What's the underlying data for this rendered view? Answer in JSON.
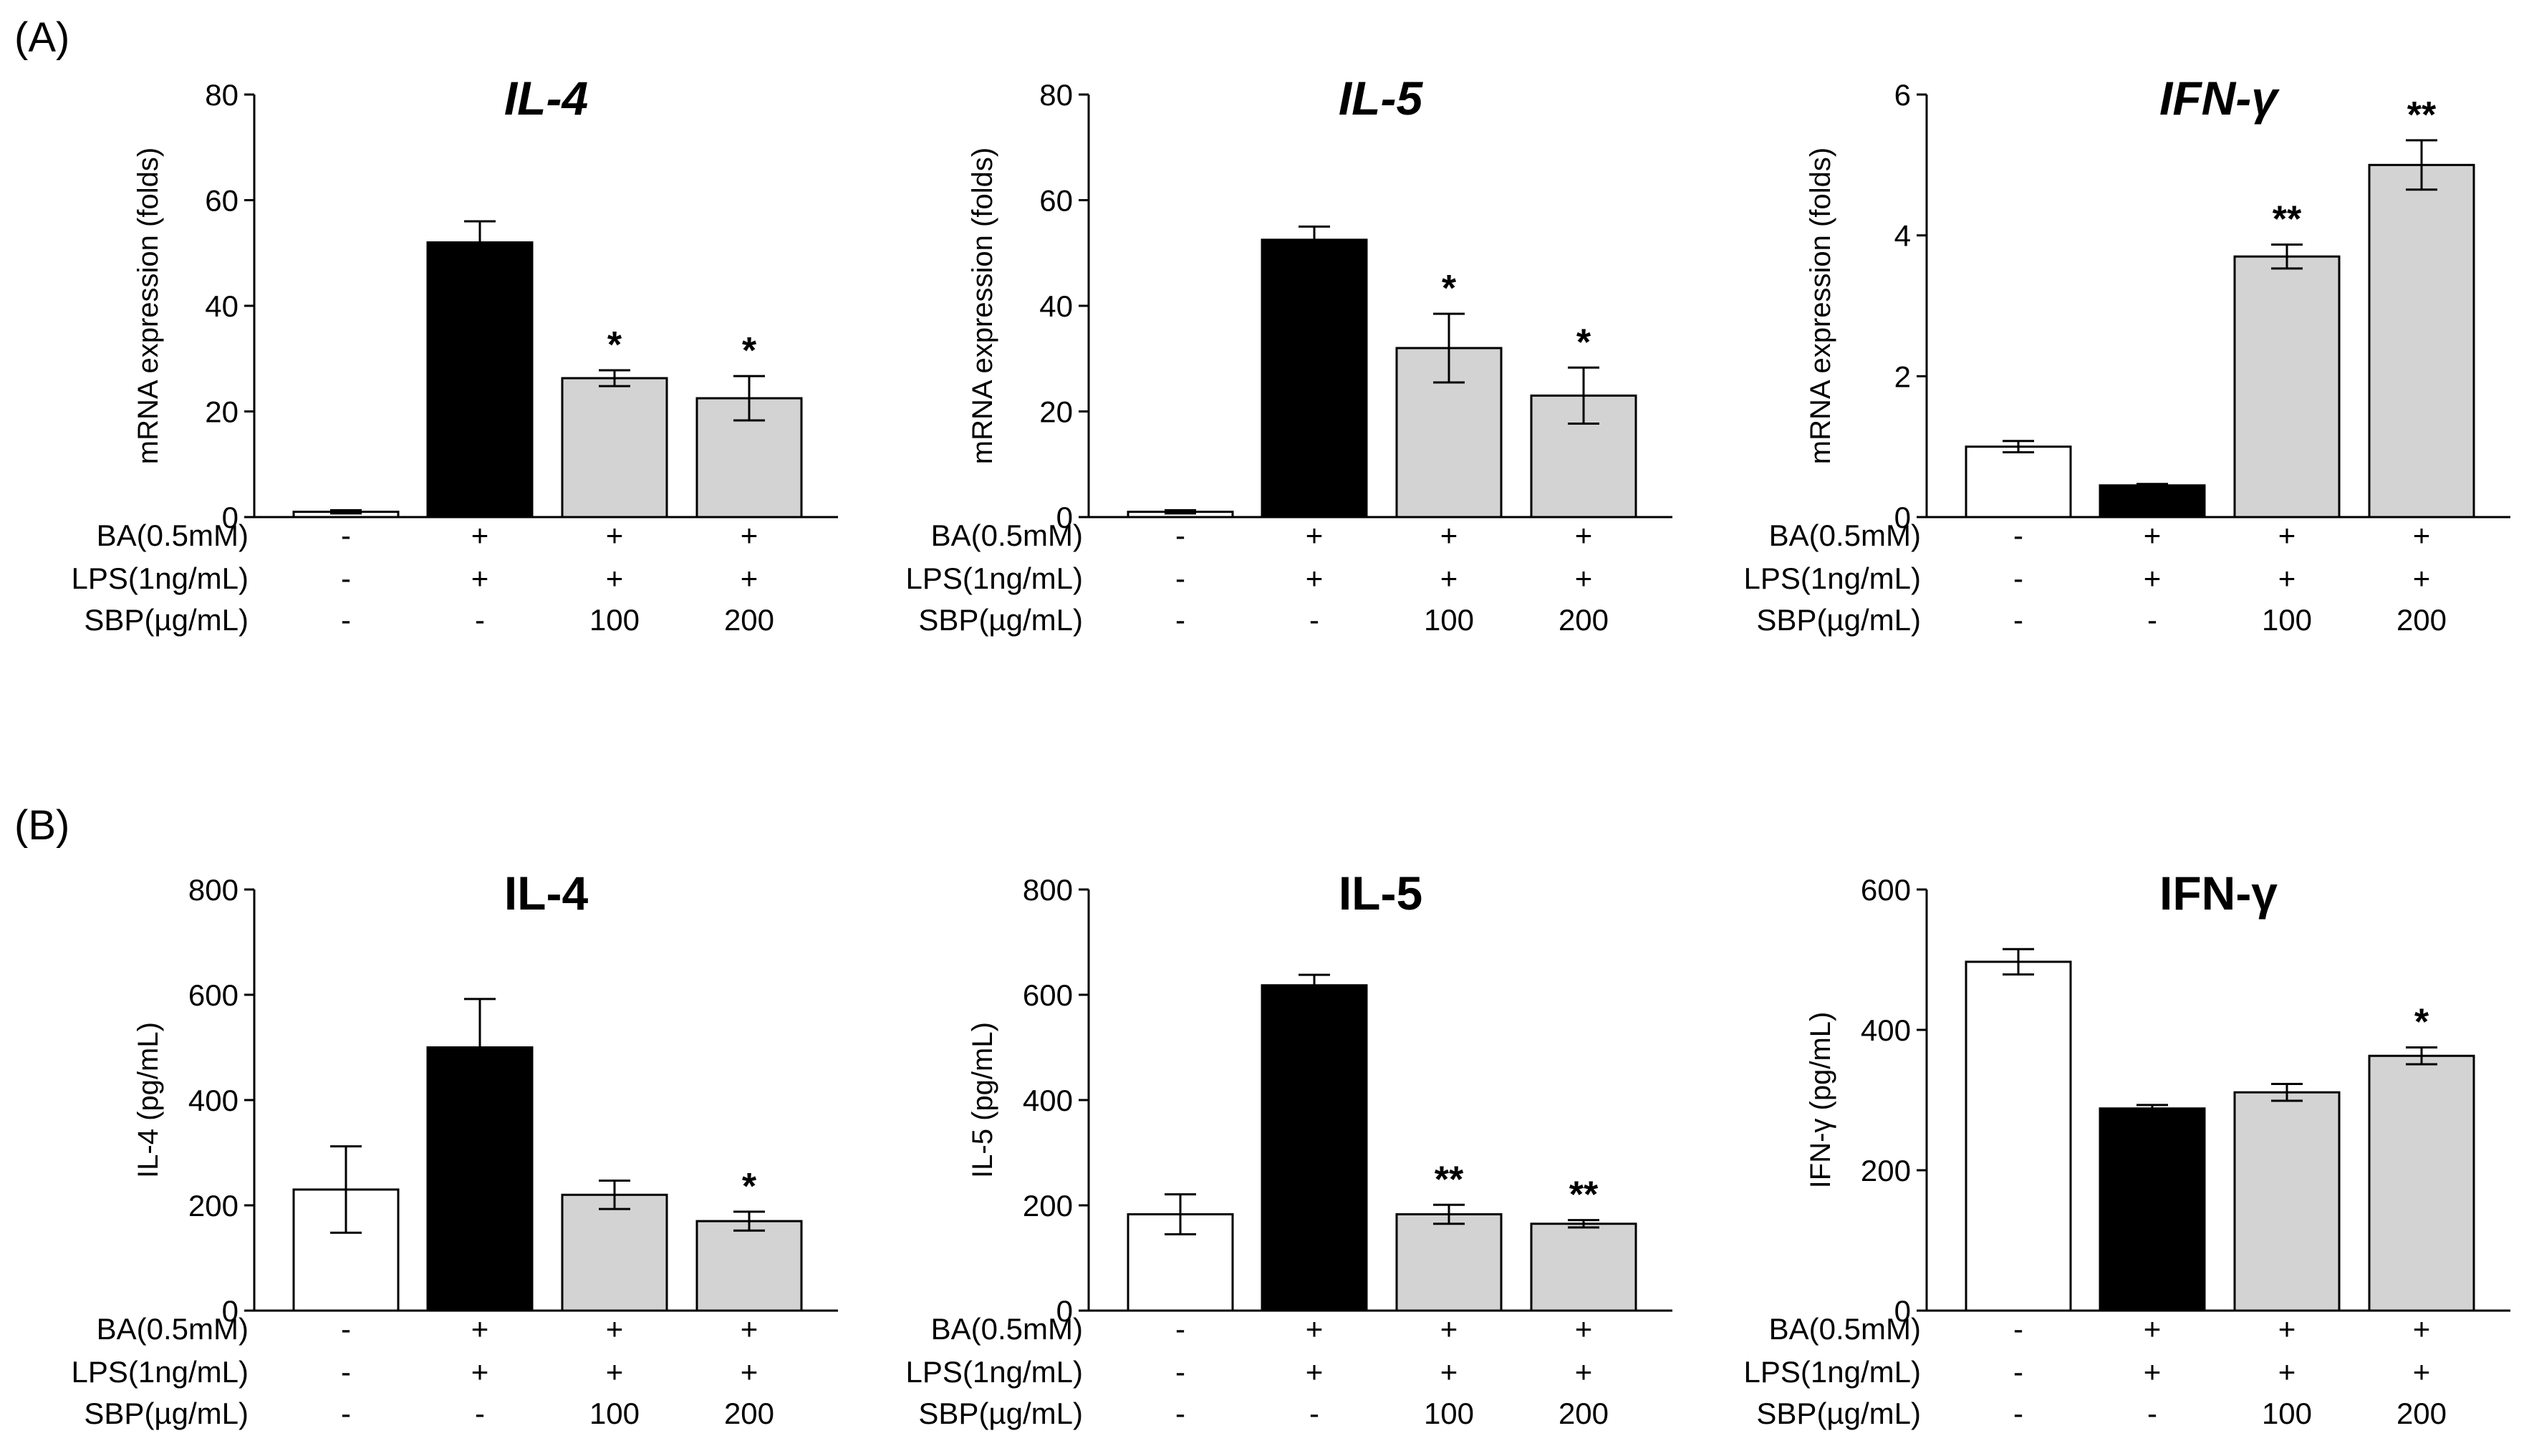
{
  "panel_labels": [
    "(A)",
    "(B)"
  ],
  "condition_labels": [
    "BA(0.5mM)",
    "LPS(1ng/mL)",
    "SBP(µg/mL)"
  ],
  "conditions": [
    [
      "-",
      "+",
      "+",
      "+"
    ],
    [
      "-",
      "+",
      "+",
      "+"
    ],
    [
      "-",
      "-",
      "100",
      "200"
    ]
  ],
  "colors": {
    "control": "#ffffff",
    "model": "#000000",
    "treatment": "#d3d3d3",
    "axis": "#000000"
  },
  "chart_data": [
    {
      "type": "bar",
      "panel": "A",
      "title": "IL-4",
      "title_italic": true,
      "ylabel": "mRNA expression (folds)",
      "ylim": [
        0,
        80
      ],
      "yticks": [
        0,
        20,
        40,
        60,
        80
      ],
      "values": [
        1,
        52,
        26.3,
        22.5
      ],
      "errors": [
        0.3,
        4,
        1.5,
        4.2
      ],
      "significance": [
        "",
        "",
        "*",
        "*"
      ]
    },
    {
      "type": "bar",
      "panel": "A",
      "title": "IL-5",
      "title_italic": true,
      "ylabel": "mRNA expression (folds)",
      "ylim": [
        0,
        80
      ],
      "yticks": [
        0,
        20,
        40,
        60,
        80
      ],
      "values": [
        1,
        52.5,
        32,
        23
      ],
      "errors": [
        0.3,
        2.5,
        6.5,
        5.3
      ],
      "significance": [
        "",
        "",
        "*",
        "*"
      ]
    },
    {
      "type": "bar",
      "panel": "A",
      "title": "IFN-γ",
      "title_italic": true,
      "ylabel": "mRNA expression (folds)",
      "ylim": [
        0,
        6
      ],
      "yticks": [
        0,
        2,
        4,
        6
      ],
      "values": [
        1,
        0.45,
        3.7,
        5
      ],
      "errors": [
        0.08,
        0.02,
        0.17,
        0.35
      ],
      "significance": [
        "",
        "",
        "**",
        "**"
      ]
    },
    {
      "type": "bar",
      "panel": "B",
      "title": "IL-4",
      "title_italic": false,
      "ylabel": "IL-4 (pg/mL)",
      "ylim": [
        0,
        800
      ],
      "yticks": [
        0,
        200,
        400,
        600,
        800
      ],
      "values": [
        230,
        500,
        220,
        170
      ],
      "errors": [
        82,
        92,
        27,
        18
      ],
      "significance": [
        "",
        "",
        "",
        "*"
      ]
    },
    {
      "type": "bar",
      "panel": "B",
      "title": "IL-5",
      "title_italic": false,
      "ylabel": "IL-5 (pg/mL)",
      "ylim": [
        0,
        800
      ],
      "yticks": [
        0,
        200,
        400,
        600,
        800
      ],
      "values": [
        183,
        618,
        183,
        165
      ],
      "errors": [
        38,
        20,
        18,
        7
      ],
      "significance": [
        "",
        "",
        "**",
        "**"
      ]
    },
    {
      "type": "bar",
      "panel": "B",
      "title": "IFN-γ",
      "title_italic": false,
      "ylabel": "IFN-γ (pg/mL)",
      "ylim": [
        0,
        600
      ],
      "yticks": [
        0,
        200,
        400,
        600
      ],
      "values": [
        497,
        288,
        311,
        363
      ],
      "errors": [
        18,
        5,
        12,
        12
      ],
      "significance": [
        "",
        "",
        "",
        "*"
      ]
    }
  ]
}
